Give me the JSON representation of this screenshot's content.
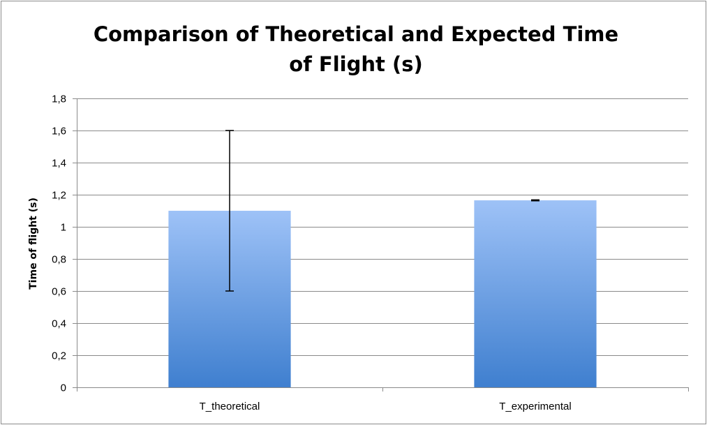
{
  "chart_data": {
    "type": "bar",
    "title": "Comparison of Theoretical and Expected Time of Flight (s)",
    "xlabel": "",
    "ylabel": "Time of flight (s)",
    "categories": [
      "T_theoretical",
      "T_experimental"
    ],
    "values": [
      1.1,
      1.165
    ],
    "error_bars": [
      0.5,
      0.003
    ],
    "ylim": [
      0,
      1.8
    ],
    "yticks": [
      0,
      0.2,
      0.4,
      0.6,
      0.8,
      1.0,
      1.2,
      1.4,
      1.6,
      1.8
    ],
    "ytick_labels": [
      "0",
      "0,2",
      "0,4",
      "0,6",
      "0,8",
      "1",
      "1,2",
      "1,4",
      "1,6",
      "1,8"
    ],
    "grid": true,
    "legend": "none",
    "colors": {
      "bar_top": "#9ec2f7",
      "bar_bottom": "#3f7fcf",
      "grid": "#8a8a8a",
      "axis": "#8a8a8a",
      "error_bar": "#000000"
    }
  }
}
